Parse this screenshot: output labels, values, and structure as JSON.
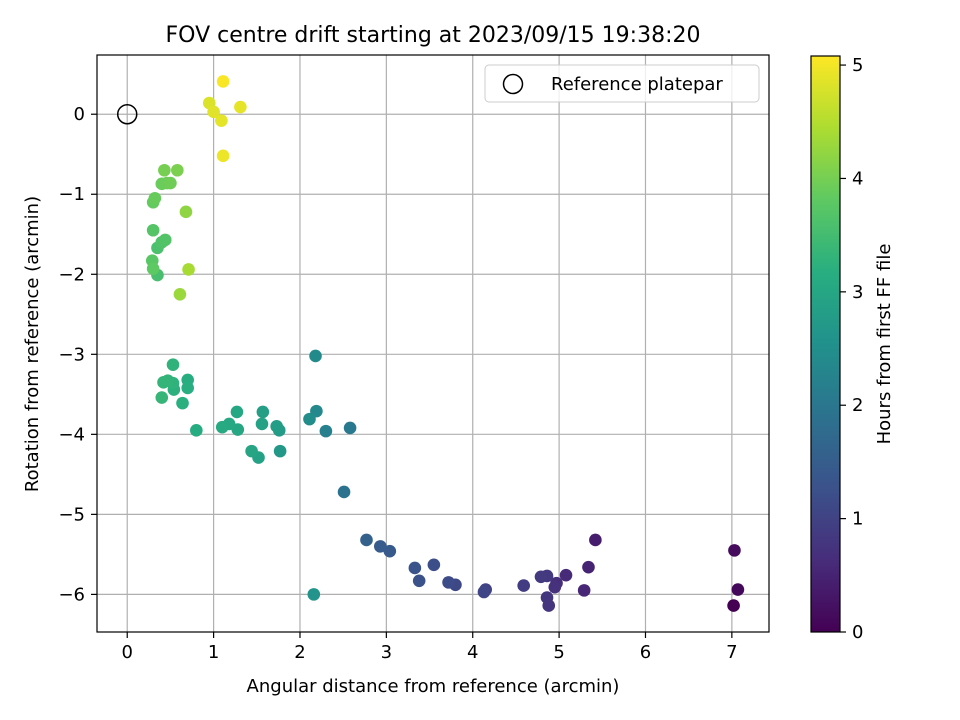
{
  "chart_data": {
    "type": "scatter",
    "title": "FOV centre drift starting at 2023/09/15 19:38:20",
    "xlabel": "Angular distance from reference (arcmin)",
    "ylabel": "Rotation from reference (arcmin)",
    "xlim": [
      -0.35,
      7.43
    ],
    "ylim": [
      -6.47,
      0.74
    ],
    "xticks": [
      0,
      1,
      2,
      3,
      4,
      5,
      6,
      7
    ],
    "yticks": [
      0,
      -1,
      -2,
      -3,
      -4,
      -5,
      -6
    ],
    "xtick_labels": [
      "0",
      "1",
      "2",
      "3",
      "4",
      "5",
      "6",
      "7"
    ],
    "ytick_labels": [
      "0",
      "−1",
      "−2",
      "−3",
      "−4",
      "−5",
      "−6"
    ],
    "grid": true,
    "colormap": "viridis",
    "colorbar": {
      "label": "Hours from first FF file",
      "range": [
        0,
        5.08
      ],
      "ticks": [
        0,
        1,
        2,
        3,
        4,
        5
      ],
      "tick_labels": [
        "0",
        "1",
        "2",
        "3",
        "4",
        "5"
      ]
    },
    "legend": {
      "position": "top-right",
      "entries": [
        "Reference platepar"
      ]
    },
    "reference": {
      "x": 0,
      "y": 0
    },
    "points": [
      [
        7.02,
        -6.14,
        0.0
      ],
      [
        7.07,
        -5.94,
        0.1
      ],
      [
        7.03,
        -5.45,
        0.15
      ],
      [
        5.42,
        -5.32,
        0.4
      ],
      [
        5.34,
        -5.66,
        0.5
      ],
      [
        5.29,
        -5.95,
        0.55
      ],
      [
        5.08,
        -5.76,
        0.6
      ],
      [
        4.97,
        -5.86,
        0.65
      ],
      [
        4.95,
        -5.91,
        0.7
      ],
      [
        4.88,
        -6.14,
        0.75
      ],
      [
        4.86,
        -6.04,
        0.78
      ],
      [
        4.86,
        -5.77,
        0.82
      ],
      [
        4.79,
        -5.78,
        0.85
      ],
      [
        4.59,
        -5.89,
        0.9
      ],
      [
        4.15,
        -5.94,
        1.0
      ],
      [
        4.13,
        -5.97,
        1.05
      ],
      [
        3.8,
        -5.88,
        1.1
      ],
      [
        3.72,
        -5.85,
        1.15
      ],
      [
        3.55,
        -5.63,
        1.2
      ],
      [
        3.38,
        -5.83,
        1.25
      ],
      [
        3.33,
        -5.67,
        1.3
      ],
      [
        3.04,
        -5.46,
        1.4
      ],
      [
        2.93,
        -5.4,
        1.45
      ],
      [
        2.77,
        -5.32,
        1.55
      ],
      [
        2.51,
        -4.72,
        1.9
      ],
      [
        2.58,
        -3.92,
        2.05
      ],
      [
        2.3,
        -3.96,
        2.2
      ],
      [
        2.19,
        -3.71,
        2.35
      ],
      [
        2.18,
        -3.02,
        2.4
      ],
      [
        2.11,
        -3.81,
        2.45
      ],
      [
        2.16,
        -6.0,
        2.6
      ],
      [
        1.77,
        -4.21,
        2.7
      ],
      [
        1.76,
        -3.95,
        2.75
      ],
      [
        1.73,
        -3.9,
        2.8
      ],
      [
        1.57,
        -3.72,
        2.85
      ],
      [
        1.56,
        -3.87,
        2.9
      ],
      [
        1.52,
        -4.29,
        2.9
      ],
      [
        1.44,
        -4.21,
        2.95
      ],
      [
        1.28,
        -3.94,
        3.0
      ],
      [
        1.27,
        -3.72,
        3.02
      ],
      [
        1.18,
        -3.87,
        3.05
      ],
      [
        1.1,
        -3.91,
        3.08
      ],
      [
        0.8,
        -3.95,
        3.1
      ],
      [
        0.7,
        -3.32,
        3.15
      ],
      [
        0.7,
        -3.42,
        3.18
      ],
      [
        0.64,
        -3.61,
        3.2
      ],
      [
        0.54,
        -3.44,
        3.23
      ],
      [
        0.53,
        -3.36,
        3.26
      ],
      [
        0.53,
        -3.13,
        3.28
      ],
      [
        0.47,
        -3.33,
        3.3
      ],
      [
        0.42,
        -3.35,
        3.32
      ],
      [
        0.4,
        -3.54,
        3.35
      ],
      [
        0.35,
        -2.01,
        3.55
      ],
      [
        0.35,
        -1.67,
        3.6
      ],
      [
        0.4,
        -1.6,
        3.65
      ],
      [
        0.44,
        -1.57,
        3.68
      ],
      [
        0.3,
        -1.45,
        3.7
      ],
      [
        0.29,
        -1.83,
        3.75
      ],
      [
        0.3,
        -1.93,
        3.8
      ],
      [
        0.3,
        -1.1,
        3.85
      ],
      [
        0.32,
        -1.05,
        3.88
      ],
      [
        0.4,
        -0.87,
        3.9
      ],
      [
        0.46,
        -0.86,
        3.92
      ],
      [
        0.5,
        -0.86,
        3.95
      ],
      [
        0.43,
        -0.7,
        4.0
      ],
      [
        0.58,
        -0.7,
        4.05
      ],
      [
        0.68,
        -1.22,
        4.2
      ],
      [
        0.61,
        -2.25,
        4.3
      ],
      [
        0.71,
        -1.94,
        4.4
      ],
      [
        0.95,
        0.14,
        4.8
      ],
      [
        1.0,
        0.03,
        4.85
      ],
      [
        1.09,
        -0.08,
        4.88
      ],
      [
        1.31,
        0.09,
        4.9
      ],
      [
        1.11,
        -0.52,
        4.95
      ],
      [
        1.11,
        0.41,
        5.05
      ]
    ]
  }
}
